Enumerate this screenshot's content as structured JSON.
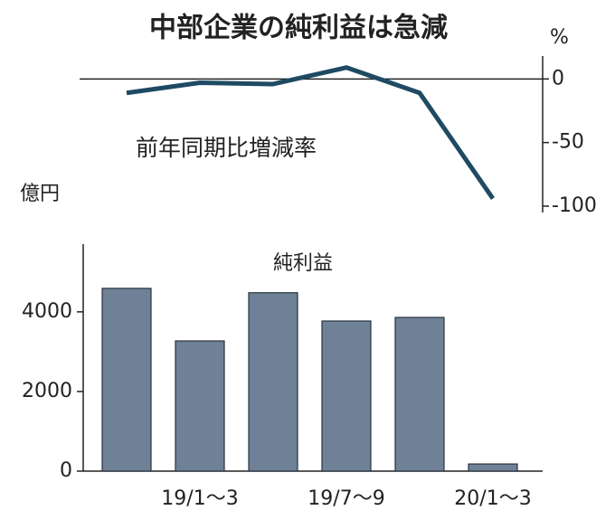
{
  "title": "中部企業の純利益は急減",
  "chart_data": [
    {
      "type": "line",
      "unit": "%",
      "label": "前年同期比増減率",
      "color": "#1f4a63",
      "values": [
        -11,
        -3,
        -4,
        9,
        -11,
        -94
      ],
      "ylim": [
        -105,
        18
      ],
      "yticks": [
        0,
        -50,
        -100
      ]
    },
    {
      "type": "bar",
      "unit": "億円",
      "label": "純利益",
      "color": "#6f8197",
      "categories": [
        null,
        "19/1～3",
        null,
        "19/7～9",
        null,
        "20/1～3"
      ],
      "values": [
        4590,
        3270,
        4480,
        3770,
        3860,
        180
      ],
      "ylim": [
        0,
        5700
      ],
      "yticks": [
        0,
        2000,
        4000
      ]
    }
  ]
}
